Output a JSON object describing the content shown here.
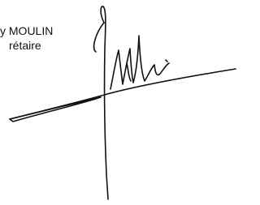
{
  "signature_block": {
    "name_line": "y MOULIN",
    "title_line": "rétaire"
  }
}
